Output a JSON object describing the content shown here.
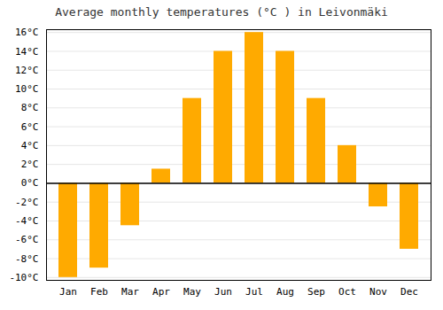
{
  "chart_data": {
    "type": "bar",
    "title": "Average monthly temperatures (°C ) in Leivonmäki",
    "categories": [
      "Jan",
      "Feb",
      "Mar",
      "Apr",
      "May",
      "Jun",
      "Jul",
      "Aug",
      "Sep",
      "Oct",
      "Nov",
      "Dec"
    ],
    "values": [
      -10,
      -9,
      -4.5,
      1.5,
      9,
      14,
      16,
      14,
      9,
      4,
      -2.5,
      -7
    ],
    "color": "#FFAA00",
    "ylim": [
      -10.3,
      16.3
    ],
    "yticks": [
      {
        "value": -10,
        "label": "-10°C"
      },
      {
        "value": -8,
        "label": "-8°C"
      },
      {
        "value": -6,
        "label": "-6°C"
      },
      {
        "value": -4,
        "label": "-4°C"
      },
      {
        "value": -2,
        "label": "-2°C"
      },
      {
        "value": 0,
        "label": "0°C"
      },
      {
        "value": 2,
        "label": "2°C"
      },
      {
        "value": 4,
        "label": "4°C"
      },
      {
        "value": 6,
        "label": "6°C"
      },
      {
        "value": 8,
        "label": "8°C"
      },
      {
        "value": 10,
        "label": "10°C"
      },
      {
        "value": 12,
        "label": "12°C"
      },
      {
        "value": 14,
        "label": "14°C"
      },
      {
        "value": 16,
        "label": "16°C"
      }
    ],
    "grid": true
  }
}
